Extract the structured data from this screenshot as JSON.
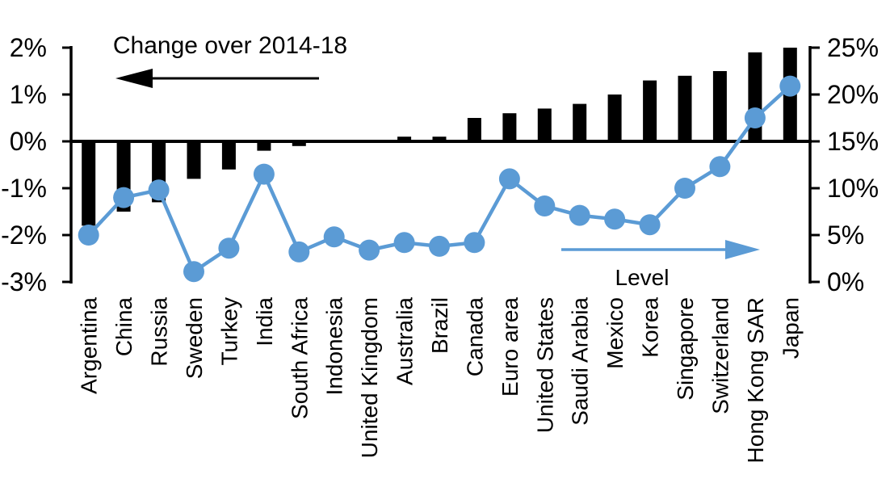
{
  "chart_data": {
    "type": "bar+line (dual axis)",
    "title": "",
    "categories": [
      "Argentina",
      "China",
      "Russia",
      "Sweden",
      "Turkey",
      "India",
      "South Africa",
      "Indonesia",
      "United Kingdom",
      "Australia",
      "Brazil",
      "Canada",
      "Euro area",
      "United States",
      "Saudi Arabia",
      "Mexico",
      "Korea",
      "Singapore",
      "Switzerland",
      "Hong Kong SAR",
      "Japan"
    ],
    "series": [
      {
        "name": "Change over 2014-18",
        "type": "bar",
        "axis": "left",
        "color": "#000000",
        "values": [
          -1.8,
          -1.5,
          -1.3,
          -0.8,
          -0.6,
          -0.2,
          -0.1,
          0,
          0,
          0.1,
          0.1,
          0.5,
          0.6,
          0.7,
          0.8,
          1.0,
          1.3,
          1.4,
          1.5,
          1.9,
          2.0
        ]
      },
      {
        "name": "Level",
        "type": "line",
        "axis": "right",
        "color": "#5B9BD5",
        "values": [
          5.0,
          9.0,
          9.8,
          1.1,
          3.6,
          11.5,
          3.2,
          4.8,
          3.4,
          4.2,
          3.8,
          4.2,
          11.0,
          8.1,
          7.1,
          6.7,
          6.1,
          10.0,
          12.3,
          17.5,
          20.9
        ]
      }
    ],
    "left_axis": {
      "min": -3,
      "max": 2,
      "tick_values": [
        2,
        1,
        0,
        -1,
        -2,
        -3
      ],
      "tick_labels": [
        "2%",
        "1%",
        "0%",
        "-1%",
        "-2%",
        "-3%"
      ]
    },
    "right_axis": {
      "min": 0,
      "max": 25,
      "tick_values": [
        25,
        20,
        15,
        10,
        5,
        0
      ],
      "tick_labels": [
        "25%",
        "20%",
        "15%",
        "10%",
        "5%",
        "0%"
      ]
    },
    "annotations": {
      "bar_label": "Change over 2014-18",
      "line_label": "Level"
    },
    "layout_hints": {
      "grid": "off",
      "zero_line": "left 0% aligns with right 15%",
      "x_labels_rotated_90": true
    }
  }
}
